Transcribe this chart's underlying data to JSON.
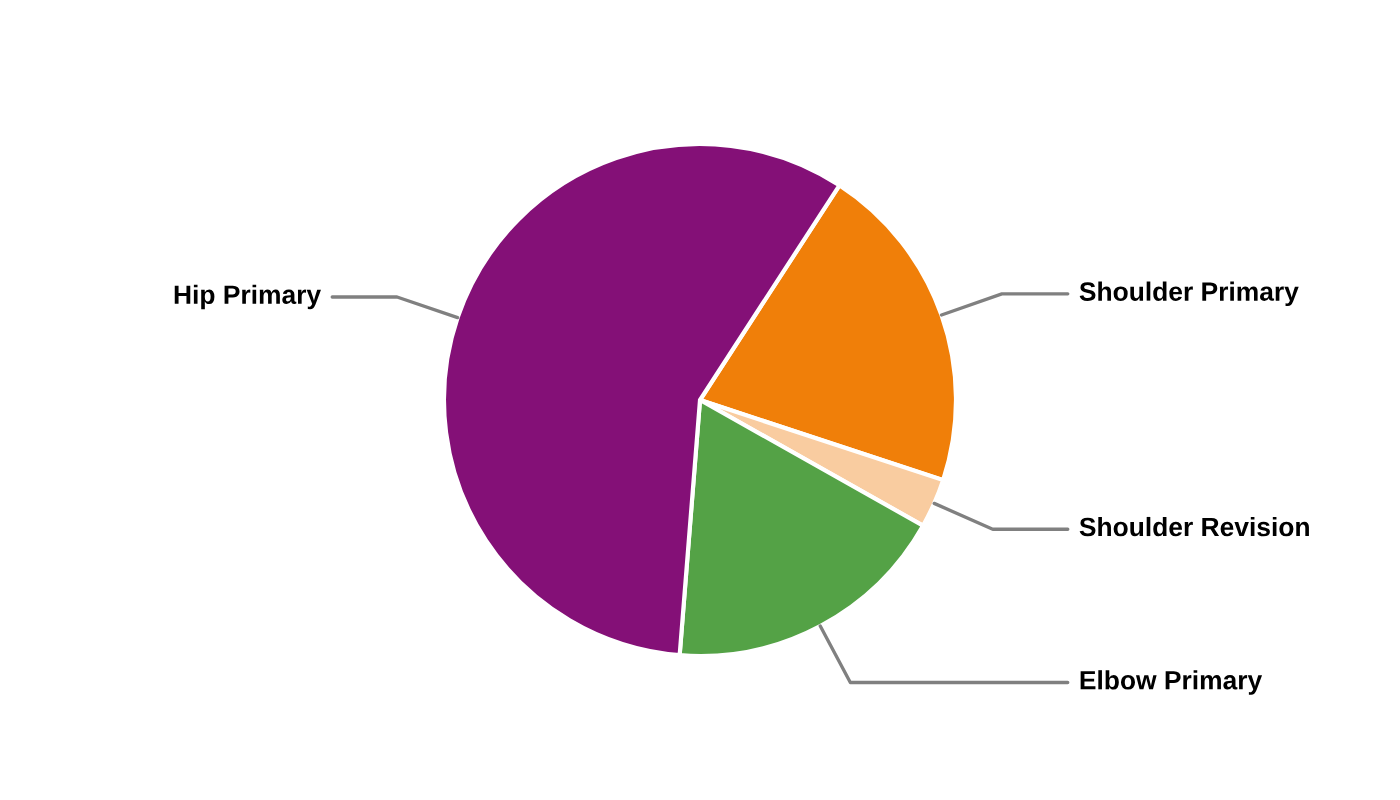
{
  "chart_data": {
    "type": "pie",
    "categories": [
      "Shoulder Primary",
      "Shoulder Revision",
      "Elbow Primary",
      "Hip Primary"
    ],
    "values": [
      20.9,
      3.1,
      18.1,
      57.9
    ],
    "colors": [
      "#f07f09",
      "#f9cca0",
      "#54a246",
      "#841077"
    ],
    "legend": false
  }
}
